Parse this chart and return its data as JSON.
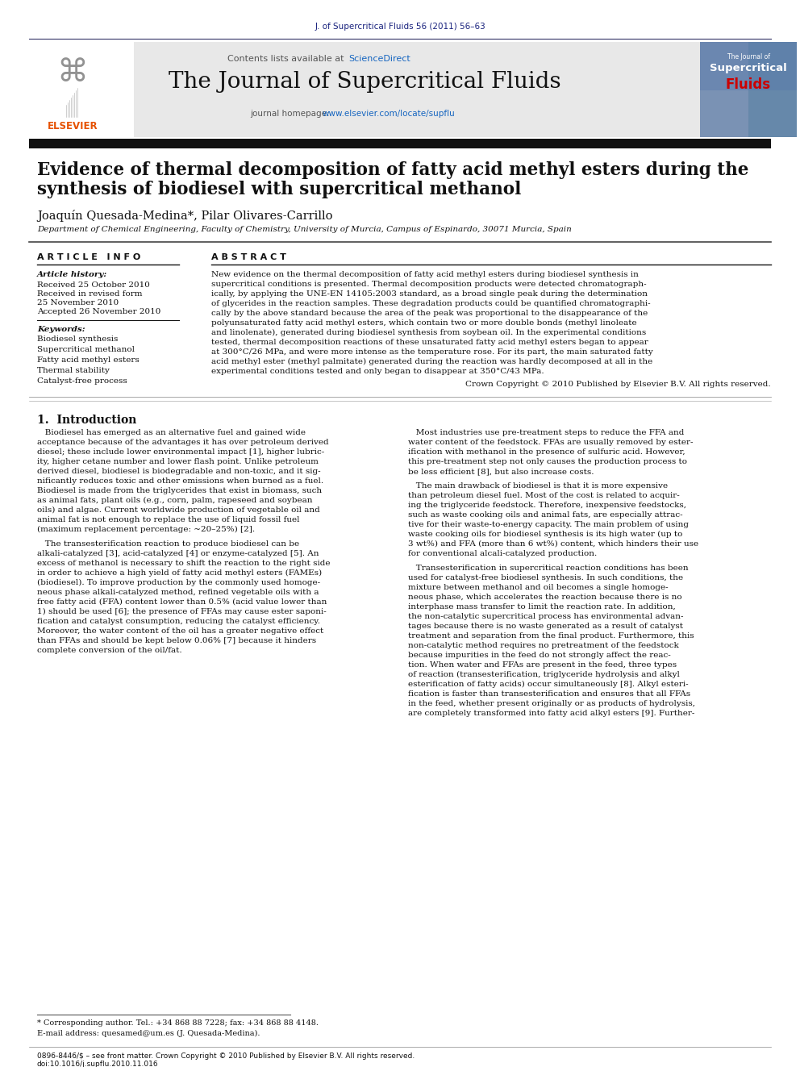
{
  "page_background": "#ffffff",
  "header_citation": "J. of Supercritical Fluids 56 (2011) 56–63",
  "header_citation_color": "#1a237e",
  "contents_text": "Contents lists available at",
  "sciencedirect_text": "ScienceDirect",
  "sciencedirect_color": "#e65100",
  "journal_name": "The Journal of Supercritical Fluids",
  "journal_homepage_color": "#1565c0",
  "header_bg": "#e8e8e8",
  "dark_bar_color": "#1a1a1a",
  "title_line1": "Evidence of thermal decomposition of fatty acid methyl esters during the",
  "title_line2": "synthesis of biodiesel with supercritical methanol",
  "authors": "Joaquín Quesada-Medina*, Pilar Olivares-Carrillo",
  "affiliation": "Department of Chemical Engineering, Faculty of Chemistry, University of Murcia, Campus of Espinardo, 30071 Murcia, Spain",
  "article_info_header": "A R T I C L E   I N F O",
  "abstract_header": "A B S T R A C T",
  "article_history_label": "Article history:",
  "received1": "Received 25 October 2010",
  "received2": "Received in revised form",
  "received2b": "25 November 2010",
  "accepted": "Accepted 26 November 2010",
  "keywords_label": "Keywords:",
  "keywords": [
    "Biodiesel synthesis",
    "Supercritical methanol",
    "Fatty acid methyl esters",
    "Thermal stability",
    "Catalyst-free process"
  ],
  "abstract_lines": [
    "New evidence on the thermal decomposition of fatty acid methyl esters during biodiesel synthesis in",
    "supercritical conditions is presented. Thermal decomposition products were detected chromatograph-",
    "ically, by applying the UNE-EN 14105:2003 standard, as a broad single peak during the determination",
    "of glycerides in the reaction samples. These degradation products could be quantified chromatographi-",
    "cally by the above standard because the area of the peak was proportional to the disappearance of the",
    "polyunsaturated fatty acid methyl esters, which contain two or more double bonds (methyl linoleate",
    "and linolenate), generated during biodiesel synthesis from soybean oil. In the experimental conditions",
    "tested, thermal decomposition reactions of these unsaturated fatty acid methyl esters began to appear",
    "at 300°C/26 MPa, and were more intense as the temperature rose. For its part, the main saturated fatty",
    "acid methyl ester (methyl palmitate) generated during the reaction was hardly decomposed at all in the",
    "experimental conditions tested and only began to disappear at 350°C/43 MPa."
  ],
  "abstract_copyright": "Crown Copyright © 2010 Published by Elsevier B.V. All rights reserved.",
  "section1_header": "1.  Introduction",
  "intro_col1_lines_p1": [
    "   Biodiesel has emerged as an alternative fuel and gained wide",
    "acceptance because of the advantages it has over petroleum derived",
    "diesel; these include lower environmental impact [1], higher lubric-",
    "ity, higher cetane number and lower flash point. Unlike petroleum",
    "derived diesel, biodiesel is biodegradable and non-toxic, and it sig-",
    "nificantly reduces toxic and other emissions when burned as a fuel.",
    "Biodiesel is made from the triglycerides that exist in biomass, such",
    "as animal fats, plant oils (e.g., corn, palm, rapeseed and soybean",
    "oils) and algae. Current worldwide production of vegetable oil and",
    "animal fat is not enough to replace the use of liquid fossil fuel",
    "(maximum replacement percentage: ~20–25%) [2]."
  ],
  "intro_col1_lines_p2": [
    "   The transesterification reaction to produce biodiesel can be",
    "alkali-catalyzed [3], acid-catalyzed [4] or enzyme-catalyzed [5]. An",
    "excess of methanol is necessary to shift the reaction to the right side",
    "in order to achieve a high yield of fatty acid methyl esters (FAMEs)",
    "(biodiesel). To improve production by the commonly used homoge-",
    "neous phase alkali-catalyzed method, refined vegetable oils with a",
    "free fatty acid (FFA) content lower than 0.5% (acid value lower than",
    "1) should be used [6]; the presence of FFAs may cause ester saponi-",
    "fication and catalyst consumption, reducing the catalyst efficiency.",
    "Moreover, the water content of the oil has a greater negative effect",
    "than FFAs and should be kept below 0.06% [7] because it hinders",
    "complete conversion of the oil/fat."
  ],
  "intro_col2_lines_p1": [
    "   Most industries use pre-treatment steps to reduce the FFA and",
    "water content of the feedstock. FFAs are usually removed by ester-",
    "ification with methanol in the presence of sulfuric acid. However,",
    "this pre-treatment step not only causes the production process to",
    "be less efficient [8], but also increase costs."
  ],
  "intro_col2_lines_p2": [
    "   The main drawback of biodiesel is that it is more expensive",
    "than petroleum diesel fuel. Most of the cost is related to acquir-",
    "ing the triglyceride feedstock. Therefore, inexpensive feedstocks,",
    "such as waste cooking oils and animal fats, are especially attrac-",
    "tive for their waste-to-energy capacity. The main problem of using",
    "waste cooking oils for biodiesel synthesis is its high water (up to",
    "3 wt%) and FFA (more than 6 wt%) content, which hinders their use",
    "for conventional alcali-catalyzed production."
  ],
  "intro_col2_lines_p3": [
    "   Transesterification in supercritical reaction conditions has been",
    "used for catalyst-free biodiesel synthesis. In such conditions, the",
    "mixture between methanol and oil becomes a single homoge-",
    "neous phase, which accelerates the reaction because there is no",
    "interphase mass transfer to limit the reaction rate. In addition,",
    "the non-catalytic supercritical process has environmental advan-",
    "tages because there is no waste generated as a result of catalyst",
    "treatment and separation from the final product. Furthermore, this",
    "non-catalytic method requires no pretreatment of the feedstock",
    "because impurities in the feed do not strongly affect the reac-",
    "tion. When water and FFAs are present in the feed, three types",
    "of reaction (transesterification, triglyceride hydrolysis and alkyl",
    "esterification of fatty acids) occur simultaneously [8]. Alkyl esteri-",
    "fication is faster than transesterification and ensures that all FFAs",
    "in the feed, whether present originally or as products of hydrolysis,",
    "are completely transformed into fatty acid alkyl esters [9]. Further-"
  ],
  "footnote_star": "* Corresponding author. Tel.: +34 868 88 7228; fax: +34 868 88 4148.",
  "footnote_email": "E-mail address: quesamed@um.es (J. Quesada-Medina).",
  "bottom_bar1": "0896-8446/$ – see front matter. Crown Copyright © 2010 Published by Elsevier B.V. All rights reserved.",
  "bottom_bar2": "doi:10.1016/j.supflu.2010.11.016",
  "elsevier_color": "#e65100",
  "supercritical_fluids_color": "#cc0000"
}
